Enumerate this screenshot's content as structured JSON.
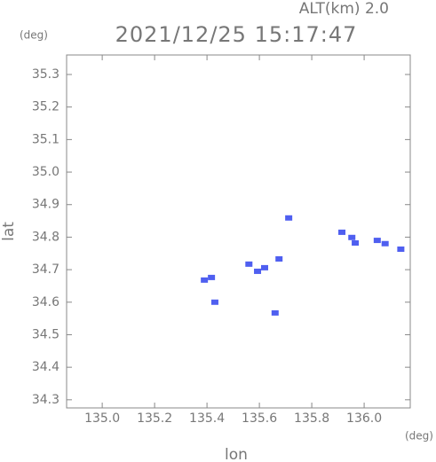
{
  "chart_data": {
    "type": "scatter",
    "title": "2021/12/25 15:17:47",
    "subtitle": "ALT(km)  2.0",
    "y_unit": "(deg)",
    "x_unit": "(deg)",
    "x_label": "lon",
    "y_label": "lat",
    "color": "#4f5ff0",
    "x": [
      135.39,
      135.417,
      135.43,
      135.56,
      135.593,
      135.62,
      135.675,
      135.66,
      135.712,
      135.915,
      135.953,
      135.966,
      136.05,
      136.08,
      136.14
    ],
    "y": [
      34.668,
      34.676,
      34.6,
      34.717,
      34.695,
      34.706,
      34.733,
      34.567,
      34.859,
      34.815,
      34.799,
      34.782,
      34.79,
      34.78,
      34.763
    ],
    "xlim": [
      134.864,
      136.176
    ],
    "ylim": [
      34.275,
      35.36
    ],
    "xticks": [
      {
        "value": 135,
        "label": "135.0"
      },
      135.2,
      135.4,
      135.6,
      135.8,
      {
        "value": 136,
        "label": "136.0"
      }
    ],
    "yticks": [
      35.3,
      35.2,
      35.1,
      {
        "value": 35,
        "label": "35.0"
      },
      34.9,
      34.8,
      34.7,
      34.6,
      34.5,
      34.4,
      34.3
    ]
  }
}
